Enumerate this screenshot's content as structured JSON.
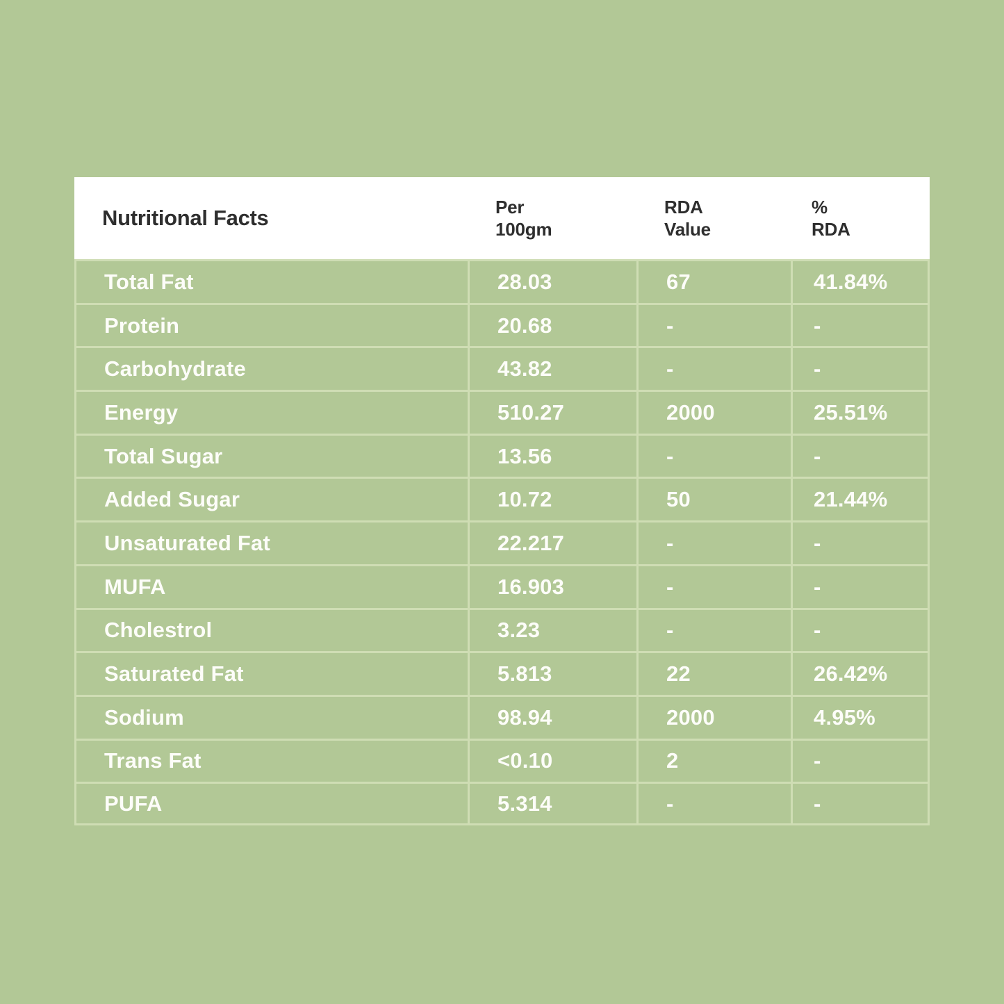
{
  "header": {
    "title": "Nutritional Facts",
    "col_per": "Per\n100gm",
    "col_rda": "RDA\nValue",
    "col_pct": "%\nRDA"
  },
  "colors": {
    "background_green": "#b2c896",
    "grid_line_green": "#cfddb4",
    "header_background": "#ffffff",
    "header_text": "#2e2e2e",
    "cell_text": "#fdfdf9"
  },
  "chart_data": {
    "type": "table",
    "title": "Nutritional Facts",
    "columns": [
      "Nutritional Facts",
      "Per 100gm",
      "RDA Value",
      "% RDA"
    ],
    "rows": [
      [
        "Total Fat",
        "28.03",
        "67",
        "41.84%"
      ],
      [
        "Protein",
        "20.68",
        "-",
        "-"
      ],
      [
        "Carbohydrate",
        "43.82",
        "-",
        "-"
      ],
      [
        "Energy",
        "510.27",
        "2000",
        "25.51%"
      ],
      [
        "Total Sugar",
        "13.56",
        "-",
        "-"
      ],
      [
        "Added Sugar",
        "10.72",
        "50",
        "21.44%"
      ],
      [
        "Unsaturated Fat",
        "22.217",
        "-",
        "-"
      ],
      [
        "MUFA",
        "16.903",
        "-",
        "-"
      ],
      [
        "Cholestrol",
        "3.23",
        "-",
        "-"
      ],
      [
        "Saturated Fat",
        "5.813",
        "22",
        "26.42%"
      ],
      [
        "Sodium",
        "98.94",
        "2000",
        "4.95%"
      ],
      [
        "Trans Fat",
        "<0.10",
        "2",
        "-"
      ],
      [
        "PUFA",
        "5.314",
        "-",
        "-"
      ]
    ]
  }
}
